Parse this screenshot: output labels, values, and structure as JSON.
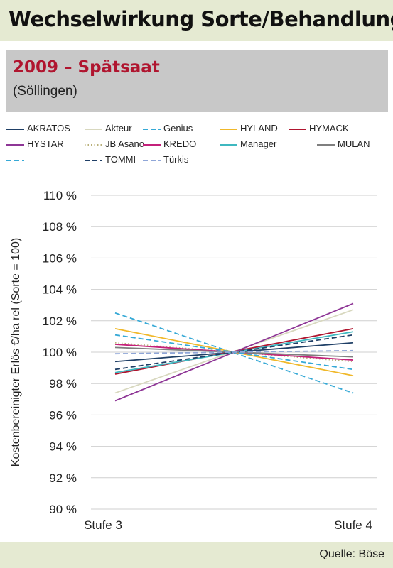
{
  "header": {
    "title": "Wechselwirkung Sorte/Behandlung"
  },
  "subheader": {
    "title": "2009 – Spätsaat",
    "location": "(Söllingen)"
  },
  "footer": {
    "source": "Quelle: Böse"
  },
  "chart_data": {
    "type": "line",
    "categories": [
      "Stufe 3",
      "Stufe 4"
    ],
    "ylabel": "Kostenbereinigter Erlös €/ha rel (Sorte = 100)",
    "ylim": [
      90,
      110
    ],
    "yticks": [
      "90 %",
      "92 %",
      "94 %",
      "96 %",
      "98 %",
      "100 %",
      "102 %",
      "104 %",
      "106 %",
      "108 %",
      "110 %"
    ],
    "grid": "horizontal",
    "legend_position": "top",
    "series": [
      {
        "name": "AKRATOS",
        "values": [
          99.4,
          100.6
        ],
        "color": "#1f3f66",
        "dash": "solid"
      },
      {
        "name": "Akteur",
        "values": [
          97.4,
          102.7
        ],
        "color": "#d8d8bf",
        "dash": "solid"
      },
      {
        "name": "Genius",
        "values": [
          102.5,
          97.4
        ],
        "color": "#36a9d6",
        "dash": "dashed"
      },
      {
        "name": "HYLAND",
        "values": [
          101.5,
          98.5
        ],
        "color": "#f0b82a",
        "dash": "solid"
      },
      {
        "name": "HYMACK",
        "values": [
          98.6,
          101.5
        ],
        "color": "#b0152f",
        "dash": "solid"
      },
      {
        "name": "HYSTAR",
        "values": [
          96.9,
          103.1
        ],
        "color": "#8e3696",
        "dash": "solid"
      },
      {
        "name": "JB Asano",
        "values": [
          100.6,
          99.4
        ],
        "color": "#b9b07a",
        "dash": "dotted"
      },
      {
        "name": "KREDO",
        "values": [
          100.5,
          99.5
        ],
        "color": "#c4207a",
        "dash": "solid"
      },
      {
        "name": "Manager",
        "values": [
          98.7,
          101.3
        ],
        "color": "#3fb8c0",
        "dash": "solid"
      },
      {
        "name": "MULAN",
        "values": [
          100.3,
          99.7
        ],
        "color": "#7f7f7f",
        "dash": "solid"
      },
      {
        "name": "",
        "values": [
          101.1,
          98.9
        ],
        "color": "#36a9d6",
        "dash": "dashed"
      },
      {
        "name": "TOMMI",
        "values": [
          98.9,
          101.1
        ],
        "color": "#1f3f66",
        "dash": "dashed"
      },
      {
        "name": "Türkis",
        "values": [
          99.9,
          100.1
        ],
        "color": "#8fa6d8",
        "dash": "dashed"
      }
    ]
  }
}
